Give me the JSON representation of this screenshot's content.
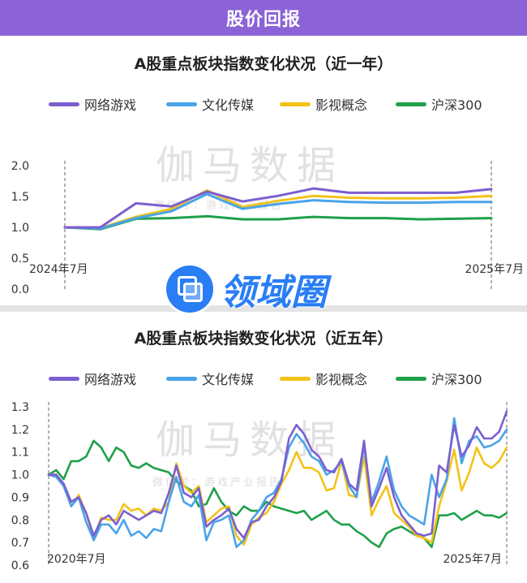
{
  "header": {
    "title": "股价回报"
  },
  "logo": {
    "text": "领域圈"
  },
  "colors": {
    "网络游戏": "#7b5fd0",
    "文化传媒": "#4aa3e8",
    "影视概念": "#f3c217",
    "沪深300": "#1fa04a"
  },
  "chart_data": [
    {
      "type": "line",
      "title": "A股重点板块指数变化状况（近一年）",
      "legend_position": "top",
      "xlabel": "",
      "ylabel": "",
      "x_start_label": "2024年7月",
      "x_end_label": "2025年7月",
      "x": [
        "2024年7月",
        "",
        "",
        "",
        "",
        "",
        "",
        "",
        "",
        "",
        "",
        "",
        "2025年7月"
      ],
      "yticks": [
        "0.0",
        "0.5",
        "1.0",
        "1.5",
        "2.0"
      ],
      "ylim": [
        0,
        2
      ],
      "watermark": "伽马数据",
      "watermark_sub": "微信号：游戏产业报告",
      "series": [
        {
          "name": "网络游戏",
          "values": [
            1.0,
            1.0,
            1.39,
            1.34,
            1.58,
            1.42,
            1.51,
            1.63,
            1.56,
            1.56,
            1.56,
            1.56,
            1.62
          ]
        },
        {
          "name": "文化传媒",
          "values": [
            1.0,
            0.98,
            1.15,
            1.26,
            1.54,
            1.3,
            1.38,
            1.44,
            1.41,
            1.4,
            1.4,
            1.41,
            1.41
          ]
        },
        {
          "name": "影视概念",
          "values": [
            1.0,
            0.99,
            1.17,
            1.3,
            1.6,
            1.33,
            1.43,
            1.51,
            1.48,
            1.47,
            1.47,
            1.48,
            1.51
          ]
        },
        {
          "name": "沪深300",
          "values": [
            1.0,
            0.97,
            1.14,
            1.15,
            1.18,
            1.13,
            1.13,
            1.17,
            1.15,
            1.15,
            1.13,
            1.14,
            1.15
          ]
        }
      ]
    },
    {
      "type": "line",
      "title": "A股重点板块指数变化状况（近五年）",
      "legend_position": "top",
      "xlabel": "",
      "ylabel": "",
      "x_start_label": "2020年7月",
      "x_end_label": "2025年7月",
      "yticks": [
        "0.6",
        "0.7",
        "0.8",
        "0.9",
        "1.0",
        "1.1",
        "1.2",
        "1.3"
      ],
      "ylim": [
        0.6,
        1.3
      ],
      "watermark": "伽马数据",
      "watermark_sub": "微信号：游戏产业报告",
      "series": [
        {
          "name": "网络游戏",
          "values": [
            1.0,
            1.0,
            0.96,
            0.88,
            0.9,
            0.83,
            0.73,
            0.8,
            0.82,
            0.78,
            0.84,
            0.82,
            0.8,
            0.82,
            0.84,
            0.83,
            0.92,
            1.04,
            0.92,
            0.9,
            0.94,
            0.77,
            0.8,
            0.82,
            0.85,
            0.76,
            0.72,
            0.79,
            0.8,
            0.86,
            0.9,
            0.97,
            1.16,
            1.22,
            1.18,
            1.11,
            1.08,
            1.02,
            1.01,
            1.07,
            0.96,
            0.93,
            1.15,
            0.86,
            0.94,
            1.03,
            0.9,
            0.82,
            0.78,
            0.74,
            0.73,
            0.74,
            1.04,
            1.01,
            1.22,
            1.08,
            1.13,
            1.21,
            1.16,
            1.16,
            1.19,
            1.28
          ]
        },
        {
          "name": "文化传媒",
          "values": [
            1.0,
            0.99,
            0.95,
            0.86,
            0.9,
            0.79,
            0.71,
            0.78,
            0.78,
            0.74,
            0.8,
            0.73,
            0.75,
            0.72,
            0.76,
            0.75,
            0.88,
            0.99,
            0.88,
            0.86,
            0.91,
            0.71,
            0.79,
            0.8,
            0.82,
            0.68,
            0.71,
            0.8,
            0.84,
            0.9,
            0.92,
            0.98,
            1.12,
            1.18,
            1.14,
            1.08,
            1.06,
            1.0,
            1.02,
            1.06,
            0.95,
            0.9,
            1.13,
            0.88,
            0.97,
            1.08,
            0.93,
            0.86,
            0.82,
            0.8,
            0.78,
            1.0,
            0.9,
            0.98,
            1.25,
            1.05,
            1.15,
            1.17,
            1.12,
            1.13,
            1.15,
            1.2
          ]
        },
        {
          "name": "影视概念",
          "values": [
            1.0,
            1.0,
            0.95,
            0.86,
            0.91,
            0.83,
            0.72,
            0.81,
            0.8,
            0.8,
            0.87,
            0.84,
            0.85,
            0.82,
            0.85,
            0.84,
            0.88,
            1.05,
            0.95,
            0.92,
            0.95,
            0.79,
            0.82,
            0.85,
            0.86,
            0.73,
            0.69,
            0.78,
            0.81,
            0.83,
            0.88,
            0.96,
            1.02,
            1.1,
            1.03,
            1.03,
            1.01,
            0.93,
            0.94,
            1.06,
            0.91,
            0.9,
            1.08,
            0.82,
            0.89,
            0.95,
            0.83,
            0.8,
            0.77,
            0.73,
            0.72,
            0.7,
            0.86,
            0.97,
            1.11,
            0.93,
            1.01,
            1.12,
            1.05,
            1.03,
            1.06,
            1.12
          ]
        },
        {
          "name": "沪深300",
          "values": [
            1.0,
            1.02,
            0.98,
            1.06,
            1.06,
            1.08,
            1.15,
            1.12,
            1.06,
            1.12,
            1.1,
            1.04,
            1.03,
            1.05,
            1.03,
            1.02,
            1.01,
            0.97,
            0.95,
            0.93,
            0.86,
            0.87,
            0.94,
            0.88,
            0.84,
            0.82,
            0.86,
            0.84,
            0.84,
            0.88,
            0.86,
            0.85,
            0.84,
            0.83,
            0.84,
            0.8,
            0.82,
            0.84,
            0.8,
            0.78,
            0.78,
            0.75,
            0.73,
            0.7,
            0.68,
            0.74,
            0.76,
            0.77,
            0.75,
            0.73,
            0.72,
            0.68,
            0.82,
            0.82,
            0.83,
            0.8,
            0.82,
            0.84,
            0.82,
            0.82,
            0.81,
            0.83
          ]
        }
      ]
    }
  ]
}
